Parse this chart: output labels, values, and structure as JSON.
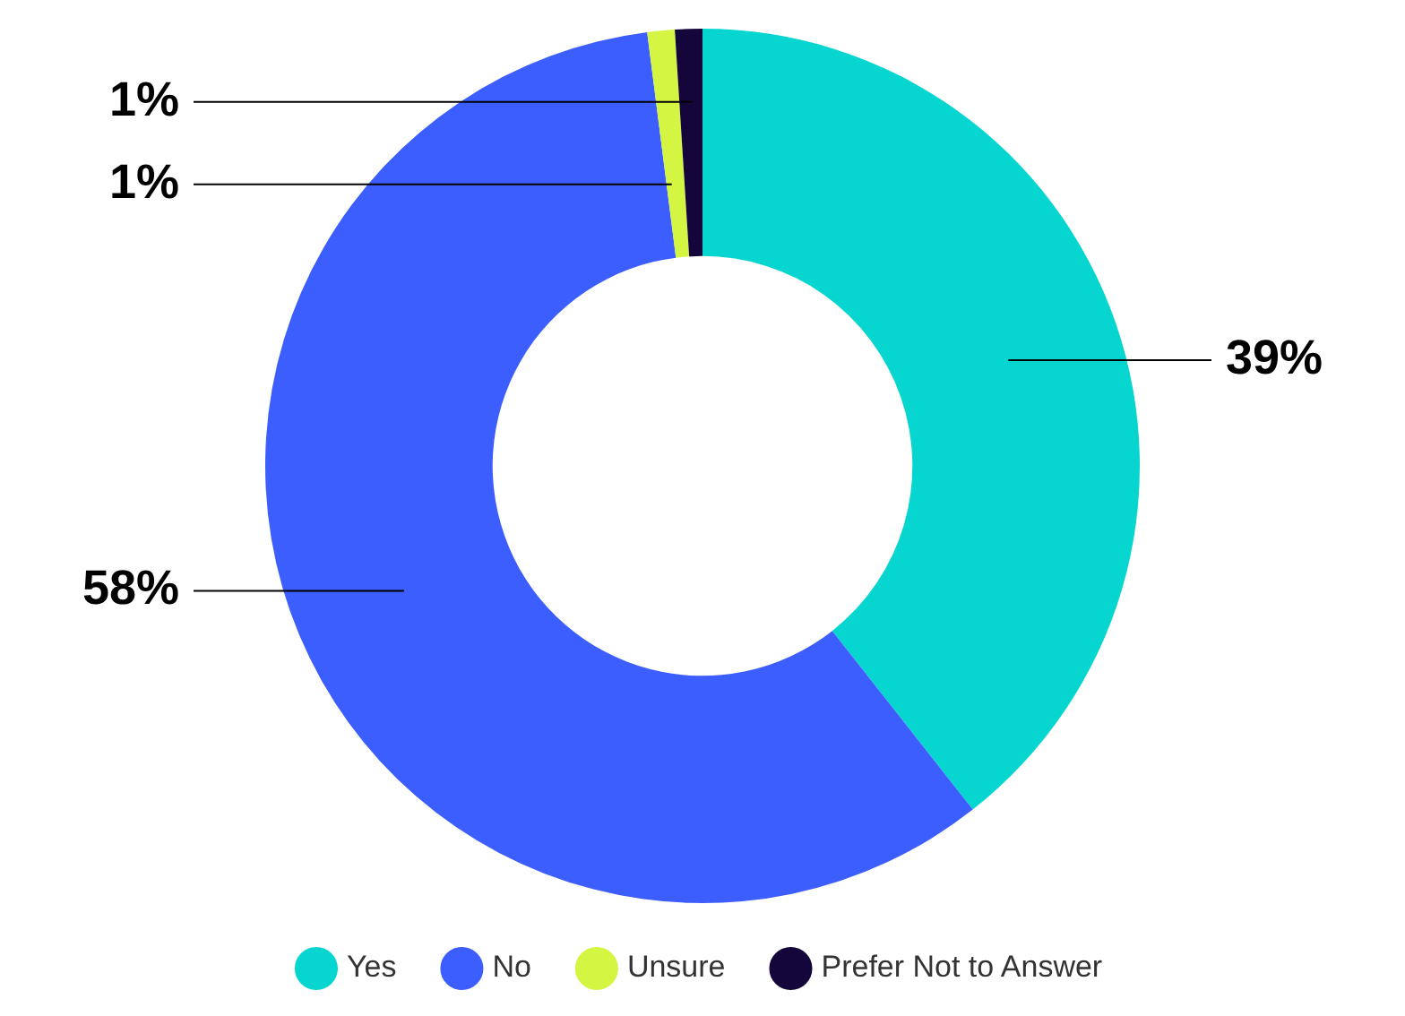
{
  "chart_data": {
    "type": "donut",
    "categories": [
      "Yes",
      "No",
      "Unsure",
      "Prefer Not to Answer"
    ],
    "values": [
      39,
      58,
      1,
      1
    ],
    "colors": [
      "#06d6cf",
      "#3d5eff",
      "#d4f542",
      "#14063a"
    ],
    "value_labels": [
      "39%",
      "58%",
      "1%",
      "1%"
    ],
    "legend": "bottom"
  }
}
